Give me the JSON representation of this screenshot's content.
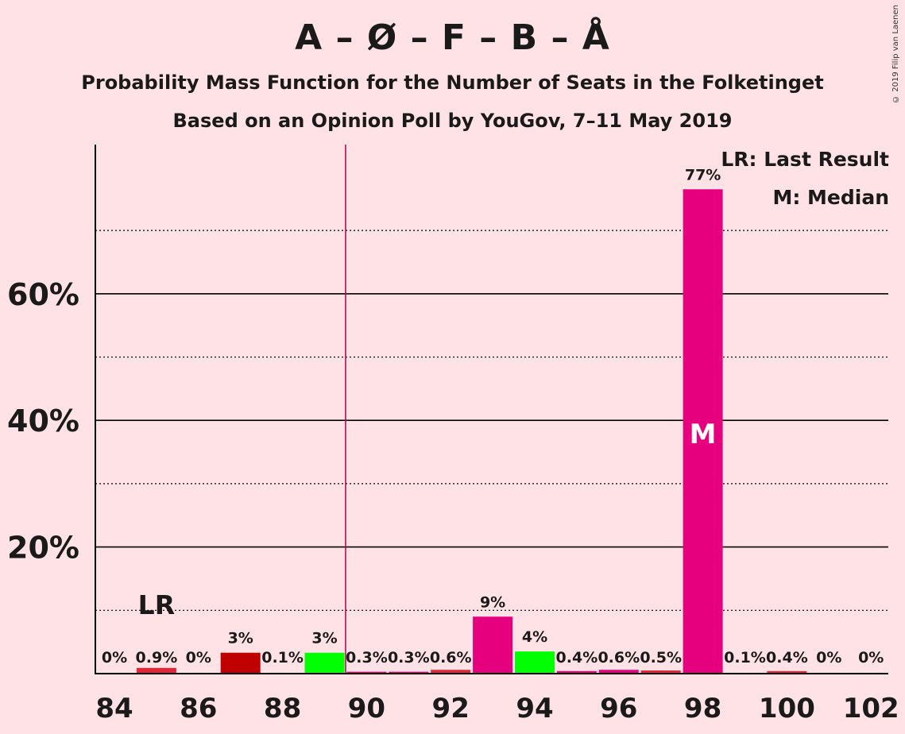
{
  "title": "A – Ø – F – B – Å",
  "subtitle1": "Probability Mass Function for the Number of Seats in the Folketinget",
  "subtitle2": "Based on an Opinion Poll by YouGov, 7–11 May 2019",
  "copyright": "© 2019 Filip van Laenen",
  "legend": {
    "last_result": "LR: Last Result",
    "median": "M: Median"
  },
  "markers": {
    "last_result_label": "LR",
    "median_label": "M"
  },
  "colors": {
    "background": "#ffe2e6",
    "magenta": "#e6007e",
    "red": "#e32636",
    "darkred": "#c00000",
    "green": "#00ff00",
    "axis": "#000000"
  },
  "chart_data": {
    "type": "bar",
    "xlabel": "",
    "ylabel": "",
    "ylim": [
      0,
      83
    ],
    "yticks": [
      20,
      40,
      60
    ],
    "ytick_labels": [
      "20%",
      "40%",
      "60%"
    ],
    "minor_gridlines": [
      10,
      30,
      50,
      70
    ],
    "xtick_labels": [
      "84",
      "86",
      "88",
      "90",
      "92",
      "94",
      "96",
      "98",
      "100",
      "102"
    ],
    "majority_line_after_seat": 89,
    "last_result_seat": 85,
    "median_seat": 98,
    "bars": [
      {
        "seat": 84,
        "value": 0,
        "label": "0%",
        "color": "magenta"
      },
      {
        "seat": 85,
        "value": 0.9,
        "label": "0.9%",
        "color": "red"
      },
      {
        "seat": 86,
        "value": 0,
        "label": "0%",
        "color": "magenta"
      },
      {
        "seat": 87,
        "value": 3.3,
        "label": "3%",
        "color": "darkred"
      },
      {
        "seat": 88,
        "value": 0.1,
        "label": "0.1%",
        "color": "magenta"
      },
      {
        "seat": 89,
        "value": 3.3,
        "label": "3%",
        "color": "green"
      },
      {
        "seat": 90,
        "value": 0.3,
        "label": "0.3%",
        "color": "magenta"
      },
      {
        "seat": 91,
        "value": 0.3,
        "label": "0.3%",
        "color": "magenta"
      },
      {
        "seat": 92,
        "value": 0.6,
        "label": "0.6%",
        "color": "red"
      },
      {
        "seat": 93,
        "value": 9,
        "label": "9%",
        "color": "magenta"
      },
      {
        "seat": 94,
        "value": 3.5,
        "label": "4%",
        "color": "green"
      },
      {
        "seat": 95,
        "value": 0.4,
        "label": "0.4%",
        "color": "magenta"
      },
      {
        "seat": 96,
        "value": 0.6,
        "label": "0.6%",
        "color": "magenta"
      },
      {
        "seat": 97,
        "value": 0.5,
        "label": "0.5%",
        "color": "red"
      },
      {
        "seat": 98,
        "value": 76.5,
        "label": "77%",
        "color": "magenta"
      },
      {
        "seat": 99,
        "value": 0.1,
        "label": "0.1%",
        "color": "magenta"
      },
      {
        "seat": 100,
        "value": 0.4,
        "label": "0.4%",
        "color": "red"
      },
      {
        "seat": 101,
        "value": 0,
        "label": "0%",
        "color": "magenta"
      },
      {
        "seat": 102,
        "value": 0,
        "label": "0%",
        "color": "magenta"
      }
    ]
  }
}
